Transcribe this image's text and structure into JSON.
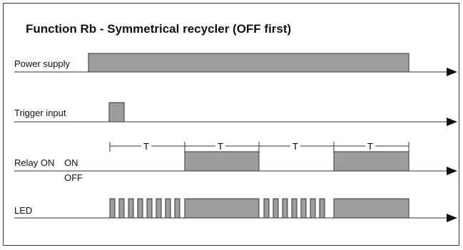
{
  "title": "Function Rb - Symmetrical recycler (OFF first)",
  "signals": {
    "power_supply": "Power supply",
    "trigger_input": "Trigger input",
    "relay": "Relay ON",
    "relay_on": "ON",
    "relay_off": "OFF",
    "led": "LED"
  },
  "interval_label": "T",
  "colors": {
    "fill": "#9d9d9d",
    "line": "#333333"
  }
}
